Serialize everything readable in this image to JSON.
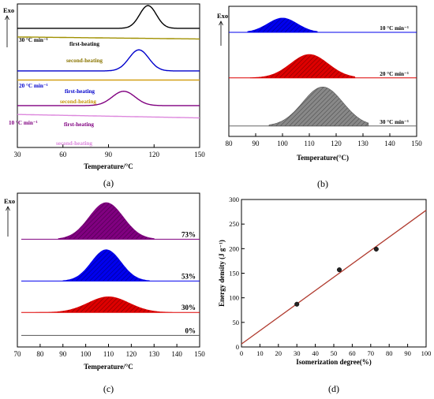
{
  "chart_data": [
    {
      "panel": "(a)",
      "type": "line",
      "y_axis_label": "Exo",
      "x_axis_label": "Temperature/°C",
      "x_ticks": [
        30,
        60,
        90,
        120,
        150
      ],
      "xlim": [
        30,
        150
      ],
      "y_ticks_visible": false,
      "series": [
        {
          "name": "30 °C min⁻¹",
          "label": "first-heating",
          "color": "#000000",
          "peak_temperature": 116,
          "peak_width": 5.5,
          "peak_height": 0.95,
          "baseline": 4.98
        },
        {
          "label": "second-heating",
          "color": "#a09000",
          "baseline": 4.62,
          "slope": -0.0007
        },
        {
          "name": "20 °C min⁻¹",
          "label": "first-heating",
          "color": "#0000cc",
          "peak_temperature": 110,
          "peak_width": 6.5,
          "peak_height": 0.88,
          "baseline": 3.2
        },
        {
          "label": "second-heating",
          "color": "#d4a017",
          "baseline": 2.82,
          "slope": 0
        },
        {
          "name": "10 °C min⁻¹",
          "label": "first-heating",
          "color": "#800080",
          "peak_temperature": 100,
          "peak_width": 7.5,
          "peak_height": 0.6,
          "baseline": 1.75
        },
        {
          "label": "second-heating",
          "color": "#dd88dd",
          "baseline": 1.38,
          "slope": -0.0012
        }
      ]
    },
    {
      "panel": "(b)",
      "type": "area",
      "y_axis_label": "Exo",
      "x_axis_label": "Temperature(°C)",
      "x_ticks": [
        80,
        90,
        100,
        110,
        120,
        130,
        140,
        150
      ],
      "xlim": [
        80,
        150
      ],
      "y_ticks_visible": false,
      "series": [
        {
          "name": "10 °C min⁻¹",
          "color": "#0000ee",
          "peak_temperature": 100,
          "peak_width": 5.5,
          "peak_height": 0.55,
          "baseline": 4.0,
          "fill_from": 87,
          "fill_to": 113
        },
        {
          "name": "20 °C min⁻¹",
          "color": "#dd0000",
          "peak_temperature": 110,
          "peak_width": 7,
          "peak_height": 0.9,
          "baseline": 2.25,
          "fill_from": 88,
          "fill_to": 127
        },
        {
          "name": "30 °C min⁻¹",
          "color": "#888888",
          "peak_temperature": 115,
          "peak_width": 7.5,
          "peak_height": 1.5,
          "baseline": 0.4,
          "fill_from": 95,
          "fill_to": 132
        }
      ]
    },
    {
      "panel": "(c)",
      "type": "area",
      "y_axis_label": "Exo",
      "x_axis_label": "Temperature/°C",
      "x_ticks": [
        70,
        80,
        90,
        100,
        110,
        120,
        130,
        140,
        150
      ],
      "xlim": [
        70,
        150
      ],
      "y_ticks_visible": false,
      "series": [
        {
          "name": "73%",
          "color": "#800080",
          "peak_temperature": 109,
          "peak_width": 7.5,
          "peak_height": 1.75,
          "baseline": 4.6,
          "fill_from": 88,
          "fill_to": 130
        },
        {
          "name": "53%",
          "color": "#0000ee",
          "peak_temperature": 109,
          "peak_width": 6.5,
          "peak_height": 1.5,
          "baseline": 2.6,
          "fill_from": 90,
          "fill_to": 128
        },
        {
          "name": "30%",
          "color": "#dd0000",
          "peak_temperature": 110,
          "peak_width": 9,
          "peak_height": 0.75,
          "baseline": 1.1,
          "fill_from": 78,
          "fill_to": 138
        },
        {
          "name": "0%",
          "color": "#555555",
          "peak_temperature": 110,
          "peak_width": 8,
          "peak_height": 0,
          "baseline": 0.0,
          "fill_from": 110,
          "fill_to": 110
        }
      ]
    },
    {
      "panel": "(d)",
      "type": "scatter",
      "x_axis_label": "Isomerization degree(%)",
      "y_axis_label": "Energy density (J g⁻¹)",
      "x_ticks": [
        0,
        10,
        20,
        30,
        40,
        50,
        60,
        70,
        80,
        90,
        100
      ],
      "y_ticks": [
        0,
        50,
        100,
        150,
        200,
        250,
        300
      ],
      "xlim": [
        0,
        100
      ],
      "ylim": [
        0,
        300
      ],
      "points": [
        {
          "x": 30,
          "y": 87
        },
        {
          "x": 53,
          "y": 157
        },
        {
          "x": 73,
          "y": 199
        }
      ],
      "fit_line": {
        "x": [
          0,
          100
        ],
        "y": [
          6,
          278
        ],
        "color": "#b03a2e"
      }
    }
  ]
}
